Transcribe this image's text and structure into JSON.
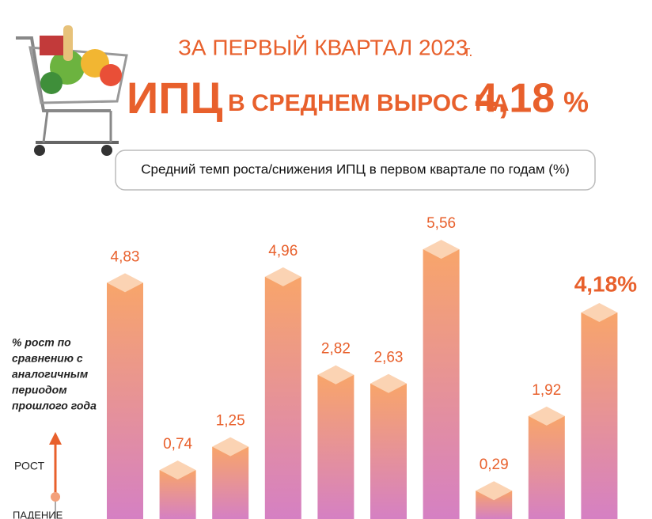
{
  "header": {
    "line1": "ЗА ПЕРВЫЙ КВАРТАЛ 2023",
    "line1_suffix": "г.",
    "cpi": "ИПЦ",
    "phrase": "В СРЕДНЕМ ВЫРОС НА",
    "value": "4,18",
    "percent": "%"
  },
  "chart_data": {
    "type": "bar",
    "subtitle": "Средний темп роста/снижения ИПЦ в первом квартале по годам (%)",
    "categories": [
      null,
      null,
      null,
      null,
      null,
      null,
      null,
      null,
      null,
      null
    ],
    "values": [
      4.83,
      0.74,
      1.25,
      4.96,
      2.82,
      2.63,
      5.56,
      0.29,
      1.92,
      4.18
    ],
    "value_labels": [
      "4,83",
      "0,74",
      "1,25",
      "4,96",
      "2,82",
      "2,63",
      "5,56",
      "0,29",
      "1,92",
      "4,18%"
    ],
    "gradient": [
      "#f8a56a",
      "#d580c3"
    ],
    "annotation": [
      "% рост по",
      "сравнению с",
      "аналогичным",
      "периодом",
      "прошлого года"
    ],
    "legend_up": "РОСТ",
    "legend_down": "ПАДЕНИЕ"
  }
}
